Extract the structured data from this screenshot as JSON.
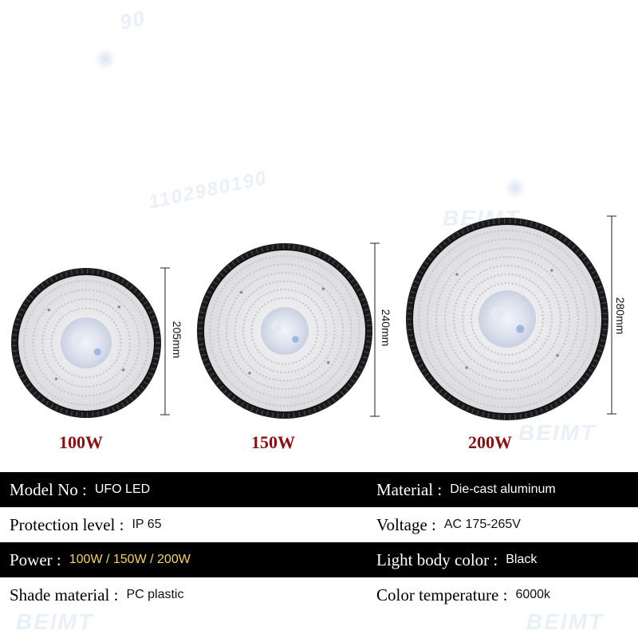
{
  "watermark": {
    "brand": "BEIMT",
    "contact_id": "1102980190",
    "contact_fragment": "90"
  },
  "products": [
    {
      "power_label": "100W",
      "height_label": "205mm"
    },
    {
      "power_label": "150W",
      "height_label": "240mm"
    },
    {
      "power_label": "200W",
      "height_label": "280mm"
    }
  ],
  "specs": [
    {
      "left": {
        "key": "Model No :",
        "value": "UFO LED"
      },
      "right": {
        "key": "Material :",
        "value": "Die-cast aluminum"
      }
    },
    {
      "left": {
        "key": "Protection level :",
        "value": "IP 65"
      },
      "right": {
        "key": "Voltage :",
        "value": "AC 175-265V"
      }
    },
    {
      "left": {
        "key": "Power :",
        "value": "100W / 150W / 200W"
      },
      "right": {
        "key": "Light body color :",
        "value": "Black"
      }
    },
    {
      "left": {
        "key": "Shade material :",
        "value": "PC plastic"
      },
      "right": {
        "key": "Color temperature :",
        "value": "6000k"
      }
    }
  ],
  "colors": {
    "power_label": "#8a1010",
    "table_dark_bg": "#000000",
    "power_value_highlight": "#f5d35a",
    "lamp_rim": "#1a1a1a",
    "lamp_face": "#e9e9ec",
    "led_dot": "#c9c9cd"
  }
}
